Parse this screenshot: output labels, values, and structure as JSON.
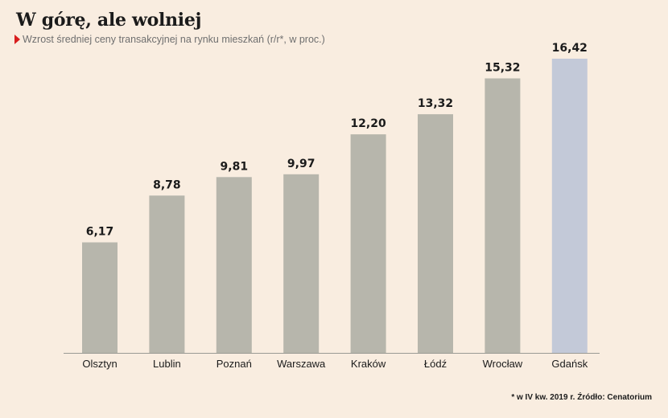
{
  "chart_data": {
    "type": "bar",
    "title": "W górę, ale wolniej",
    "subtitle": "Wzrost średniej ceny transakcyjnej na rynku mieszkań (r/r*, w proc.)",
    "categories": [
      "Olsztyn",
      "Lublin",
      "Poznań",
      "Warszawa",
      "Kraków",
      "Łódź",
      "Wrocław",
      "Gdańsk"
    ],
    "values": [
      6.17,
      8.78,
      9.81,
      9.97,
      12.2,
      13.32,
      15.32,
      16.42
    ],
    "value_labels": [
      "6,17",
      "8,78",
      "9,81",
      "9,97",
      "12,20",
      "13,32",
      "15,32",
      "16,42"
    ],
    "colors": {
      "default": "#b7b6ac",
      "highlight": "#c3c9d8",
      "highlight_category": "Gdańsk"
    },
    "ylim": [
      0,
      16.42
    ],
    "grid": false
  },
  "footnote": "* w IV kw. 2019 r. Źródło: Cenatorium"
}
